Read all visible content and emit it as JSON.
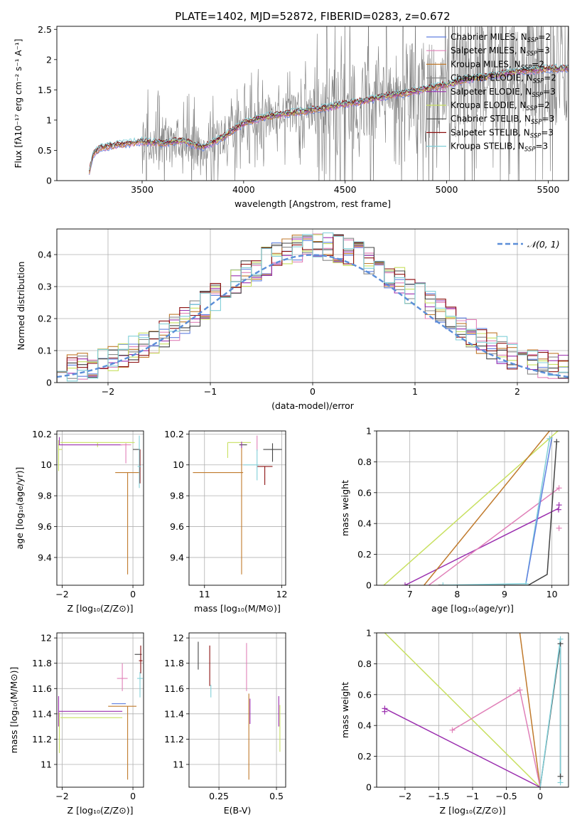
{
  "figure": {
    "title": "PLATE=1402, MJD=52872, FIBERID=0283, z=0.672"
  },
  "colors": {
    "Chabrier MILES": "#6080e0",
    "Salpeter MILES": "#e8845a",
    "Kroupa MILES": "#c07a2c",
    "Chabrier ELODIE": "#888888",
    "Salpeter ELODIE": "#9b2faf",
    "Kroupa ELODIE": "#c8e060",
    "Chabrier STELIB": "#444444",
    "Salpeter STELIB": "#8b1010",
    "Kroupa STELIB": "#80cfd8",
    "pink": "#e080b8",
    "gaussian": "#5b8ed8"
  },
  "chart_data": [
    {
      "id": "spectrum",
      "type": "line",
      "title": "PLATE=1402, MJD=52872, FIBERID=0283, z=0.672",
      "xlabel": "wavelength [Angstrom, rest frame]",
      "ylabel": "Flux [fλ10⁻¹⁷ erg cm⁻² s⁻¹ A⁻¹]",
      "xlim": [
        3080,
        5600
      ],
      "ylim": [
        0,
        2.55
      ],
      "xticks": [
        3500,
        4000,
        4500,
        5000,
        5500
      ],
      "yticks": [
        0.0,
        0.5,
        1.0,
        1.5,
        2.0,
        2.5
      ],
      "grid": false,
      "legend_position": "top-right",
      "legend": [
        {
          "label": "Chabrier MILES, N",
          "sub": "SSP",
          "suffix": "=2",
          "color_key": "Chabrier MILES"
        },
        {
          "label": "Salpeter MILES, N",
          "sub": "SSP",
          "suffix": "=3",
          "color_key": "pink"
        },
        {
          "label": "Kroupa MILES, N",
          "sub": "SSP",
          "suffix": "=2",
          "color_key": "Kroupa MILES"
        },
        {
          "label": "Chabrier ELODIE, N",
          "sub": "SSP",
          "suffix": "=2",
          "color_key": "Chabrier ELODIE"
        },
        {
          "label": "Salpeter ELODIE, N",
          "sub": "SSP",
          "suffix": "=3",
          "color_key": "Salpeter ELODIE"
        },
        {
          "label": "Kroupa ELODIE, N",
          "sub": "SSP",
          "suffix": "=2",
          "color_key": "Kroupa ELODIE"
        },
        {
          "label": "Chabrier STELIB, N",
          "sub": "SSP",
          "suffix": "=3",
          "color_key": "Chabrier STELIB"
        },
        {
          "label": "Salpeter STELIB, N",
          "sub": "SSP",
          "suffix": "=3",
          "color_key": "Salpeter STELIB"
        },
        {
          "label": "Kroupa STELIB, N",
          "sub": "SSP",
          "suffix": "=3",
          "color_key": "Kroupa STELIB"
        }
      ],
      "continuum": {
        "x": [
          3230,
          3260,
          3300,
          3400,
          3500,
          3600,
          3700,
          3750,
          3800,
          3900,
          4000,
          4100,
          4200,
          4300,
          4400,
          4500,
          4600,
          4700,
          4800,
          4900,
          5000,
          5100,
          5200,
          5300,
          5400,
          5500,
          5600
        ],
        "y": [
          0.0,
          0.45,
          0.55,
          0.6,
          0.65,
          0.62,
          0.66,
          0.6,
          0.55,
          0.72,
          0.95,
          1.05,
          1.1,
          1.15,
          1.2,
          1.27,
          1.32,
          1.4,
          1.45,
          1.52,
          1.58,
          1.68,
          1.72,
          1.78,
          1.82,
          1.85,
          1.85
        ]
      }
    },
    {
      "id": "residuals",
      "type": "bar",
      "xlabel": "(data-model)/error",
      "ylabel": "Normed distribution",
      "xlim": [
        -2.5,
        2.5
      ],
      "ylim": [
        0,
        0.48
      ],
      "xticks": [
        -2,
        -1,
        0,
        1,
        2
      ],
      "yticks": [
        0.0,
        0.1,
        0.2,
        0.3,
        0.4
      ],
      "grid": true,
      "legend_position": "top-right",
      "legend": [
        {
          "label": "𝒩(0, 1)",
          "color_key": "gaussian"
        }
      ],
      "bin_width": 0.1
    },
    {
      "id": "age-vs-Z",
      "type": "scatter",
      "xlabel": "Z [log₁₀(Z/Z⊙)]",
      "ylabel": "age  [log₁₀(age/yr)]",
      "xlim": [
        -2.15,
        0.3
      ],
      "ylim": [
        9.22,
        10.22
      ],
      "xticks": [
        -2,
        0
      ],
      "yticks": [
        9.4,
        9.6,
        9.8,
        10.0,
        10.2
      ],
      "grid": true
    },
    {
      "id": "age-vs-mass",
      "type": "scatter",
      "xlabel": "mass [log₁₀(M/M⊙)]",
      "ylabel": "",
      "xlim": [
        10.8,
        12.05
      ],
      "ylim": [
        9.22,
        10.22
      ],
      "xticks": [
        11,
        12
      ],
      "yticks": [
        9.4,
        9.6,
        9.8,
        10.0,
        10.2
      ],
      "grid": true
    },
    {
      "id": "weight-vs-age",
      "type": "line",
      "xlabel": "age  [log₁₀(age/yr)]",
      "ylabel": "mass weight",
      "xlim": [
        6.3,
        10.35
      ],
      "ylim": [
        0,
        1.0
      ],
      "xticks": [
        7,
        8,
        9,
        10
      ],
      "yticks": [
        0.0,
        0.2,
        0.4,
        0.6,
        0.8,
        1.0
      ],
      "grid": true
    },
    {
      "id": "mass-vs-Z",
      "type": "scatter",
      "xlabel": "Z [log₁₀(Z/Z⊙)]",
      "ylabel": "mass [log₁₀(M/M⊙)]",
      "xlim": [
        -2.15,
        0.3
      ],
      "ylim": [
        10.82,
        12.04
      ],
      "xticks": [
        -2,
        0
      ],
      "yticks": [
        11.0,
        11.2,
        11.4,
        11.6,
        11.8,
        12.0
      ],
      "grid": true
    },
    {
      "id": "mass-vs-ebv",
      "type": "scatter",
      "xlabel": "E(B-V)",
      "ylabel": "",
      "xlim": [
        0.12,
        0.54
      ],
      "ylim": [
        10.82,
        12.04
      ],
      "xticks": [
        0.25,
        0.5
      ],
      "yticks": [
        11.0,
        11.2,
        11.4,
        11.6,
        11.8,
        12.0
      ],
      "grid": true
    },
    {
      "id": "weight-vs-Z",
      "type": "line",
      "xlabel": "Z [log₁₀(Z/Z⊙)]",
      "ylabel": "mass weight",
      "xlim": [
        -2.42,
        0.42
      ],
      "ylim": [
        0,
        1.0
      ],
      "xticks": [
        -2.0,
        -1.5,
        -1.0,
        -0.5,
        0.0
      ],
      "yticks": [
        0.0,
        0.2,
        0.4,
        0.6,
        0.8,
        1.0
      ],
      "grid": true
    }
  ]
}
